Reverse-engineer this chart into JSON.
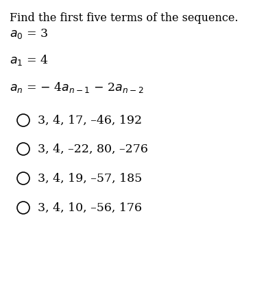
{
  "title": "Find the first five terms of the sequence.",
  "line1": "a₀ = 3",
  "line2": "a₁ = 4",
  "options": [
    "3, 4, 17, –46, 192",
    "3, 4, –22, 80, –276",
    "3, 4, 19, –57, 185",
    "3, 4, 10, –56, 176"
  ],
  "bg_color": "#ffffff",
  "text_color": "#000000",
  "font_size_title": 11.5,
  "font_size_body": 12.5,
  "font_size_option": 12.5
}
